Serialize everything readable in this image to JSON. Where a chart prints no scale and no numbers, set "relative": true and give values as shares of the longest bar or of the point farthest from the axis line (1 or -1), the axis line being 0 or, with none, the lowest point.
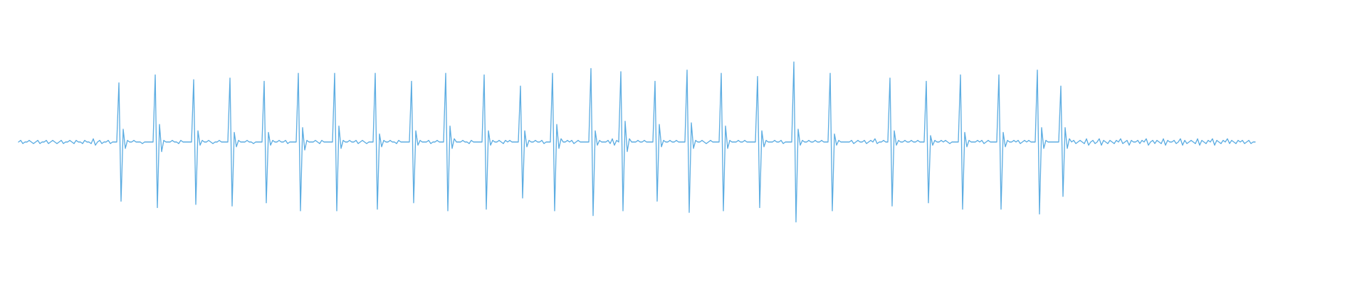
{
  "chart_data": {
    "type": "line",
    "relative": true,
    "color": "#5dade2",
    "categories": [
      null,
      null,
      null,
      null,
      null,
      null,
      null,
      null,
      null,
      null,
      null,
      null,
      null,
      null,
      null,
      null,
      null,
      null,
      null,
      null,
      null,
      null,
      null,
      null,
      null,
      null,
      null,
      null,
      null,
      null,
      null,
      null,
      null,
      null,
      null,
      null,
      null,
      null,
      null,
      null,
      null,
      null,
      null,
      null,
      null,
      null,
      null,
      null,
      null,
      null,
      null,
      null,
      null,
      null,
      null,
      null,
      null,
      null,
      null,
      null,
      null,
      null,
      null,
      null,
      null,
      null,
      null,
      null,
      null,
      null,
      null,
      null,
      null,
      null,
      null,
      null,
      null,
      null,
      null,
      null,
      null,
      null,
      null,
      null,
      null,
      null,
      null,
      null,
      null,
      null,
      null,
      null,
      null,
      null,
      null,
      null,
      null,
      null,
      null,
      null,
      null,
      null,
      null,
      null,
      null,
      null,
      null,
      null,
      null,
      null,
      null,
      null,
      null,
      null,
      null,
      null,
      null,
      null,
      null,
      null,
      null,
      null,
      null,
      null,
      null,
      null,
      null,
      null,
      null,
      null,
      null,
      null,
      null,
      null,
      null,
      null,
      null,
      null,
      null,
      null,
      null,
      null,
      null,
      null,
      null,
      null,
      null,
      null,
      null,
      null,
      null,
      null,
      null,
      null,
      null,
      null,
      null,
      null,
      null,
      null,
      null,
      null,
      null,
      null,
      null,
      null,
      null,
      null,
      null,
      null,
      null,
      null,
      null,
      null,
      null,
      null,
      null,
      null,
      null,
      null,
      null,
      null,
      null,
      null,
      null,
      null,
      null,
      null,
      null,
      null,
      null,
      null,
      null,
      null,
      null,
      null,
      null,
      null,
      null,
      null,
      null,
      null,
      null,
      null,
      null,
      null,
      null,
      null,
      null,
      null,
      null,
      null,
      null,
      null,
      null,
      null,
      null,
      null,
      null,
      null,
      null,
      null,
      null,
      null,
      null,
      null,
      null,
      null,
      null,
      null,
      null,
      null,
      null,
      null,
      null,
      null,
      null,
      null,
      null,
      null,
      null,
      null,
      null,
      null,
      null,
      null,
      null,
      null,
      null,
      null,
      null,
      null,
      null,
      null,
      null,
      null,
      null,
      null,
      null,
      null,
      null,
      null,
      null,
      null,
      null,
      null,
      null,
      null,
      null,
      null,
      null,
      null,
      null,
      null,
      null,
      null,
      null,
      null,
      null,
      null,
      null,
      null,
      null,
      null,
      null,
      null,
      null,
      null,
      null,
      null,
      null,
      null,
      null,
      null,
      null,
      null,
      null,
      null,
      null,
      null,
      null,
      null,
      null,
      null,
      null,
      null,
      null,
      null,
      null,
      null,
      null,
      null,
      null,
      null,
      null,
      null,
      null,
      null,
      null,
      null,
      null,
      null,
      null,
      null,
      null,
      null,
      null,
      null,
      null,
      null,
      null,
      null,
      null,
      null,
      null,
      null,
      null,
      null,
      null,
      null,
      null,
      null,
      null,
      null,
      null,
      null,
      null,
      null,
      null,
      null,
      null,
      null,
      null,
      null,
      null,
      null,
      null,
      null,
      null,
      null,
      null,
      null,
      null,
      null,
      null,
      null,
      null,
      null,
      null,
      null,
      null,
      null,
      null,
      null,
      null,
      null,
      null,
      null,
      null,
      null,
      null,
      null,
      null,
      null,
      null,
      null,
      null,
      null,
      null,
      null,
      null,
      null,
      null,
      null,
      null,
      null,
      null,
      null,
      null,
      null,
      null,
      null,
      null,
      null,
      null,
      null,
      null,
      null,
      null,
      null,
      null,
      null,
      null,
      null,
      null,
      null,
      null,
      null,
      null,
      null,
      null,
      null,
      null,
      null,
      null,
      null,
      null,
      null,
      null,
      null,
      null,
      null,
      null,
      null,
      null,
      null,
      null,
      null,
      null,
      null,
      null,
      null,
      null,
      null,
      null,
      null,
      null,
      null,
      null,
      null,
      null,
      null,
      null,
      null,
      null,
      null,
      null,
      null,
      null,
      null,
      null,
      null,
      null,
      null,
      null,
      null,
      null,
      null,
      null,
      null,
      null,
      null,
      null,
      null,
      null,
      null,
      null,
      null,
      null,
      null,
      null,
      null,
      null,
      null,
      null,
      null,
      null,
      null,
      null,
      null,
      null,
      null,
      null,
      null,
      null,
      null,
      null,
      null,
      null,
      null,
      null,
      null,
      null,
      null,
      null,
      null,
      null,
      null,
      null,
      null,
      null,
      null,
      null,
      null,
      null,
      null,
      null,
      null,
      null,
      null,
      null,
      null,
      null,
      null,
      null,
      null,
      null,
      null,
      null,
      null,
      null,
      null,
      null,
      null,
      null,
      null,
      null,
      null,
      null,
      null,
      null,
      null,
      null,
      null,
      null,
      null,
      null,
      null,
      null,
      null,
      null,
      null,
      null,
      null,
      null,
      null,
      null,
      null,
      null,
      null,
      null,
      null,
      null,
      null,
      null,
      null,
      null,
      null,
      null,
      null,
      null,
      null,
      null,
      null,
      null,
      null,
      null,
      null,
      null,
      null
    ],
    "values": [
      0.5,
      0.51,
      0.49,
      0.5,
      0.5,
      0.51,
      0.5,
      0.49,
      0.5,
      0.51,
      0.49,
      0.5,
      0.5,
      0.51,
      0.49,
      0.5,
      0.51,
      0.5,
      0.49,
      0.5,
      0.51,
      0.49,
      0.5,
      0.5,
      0.51,
      0.5,
      0.49,
      0.51,
      0.5,
      0.5,
      0.49,
      0.51,
      0.5,
      0.5,
      0.49,
      0.52,
      0.48,
      0.5,
      0.51,
      0.49,
      0.5,
      0.5,
      0.51,
      0.49,
      0.5,
      0.5,
      0.5,
      0.87,
      0.13,
      0.58,
      0.46,
      0.51,
      0.5,
      0.5,
      0.51,
      0.5,
      0.5,
      0.5,
      0.49,
      0.5,
      0.5,
      0.5,
      0.5,
      0.5,
      0.92,
      0.09,
      0.61,
      0.44,
      0.51,
      0.5,
      0.5,
      0.5,
      0.51,
      0.5,
      0.5,
      0.49,
      0.51,
      0.5,
      0.5,
      0.5,
      0.5,
      0.5,
      0.89,
      0.11,
      0.57,
      0.48,
      0.51,
      0.5,
      0.5,
      0.51,
      0.5,
      0.49,
      0.5,
      0.5,
      0.51,
      0.5,
      0.5,
      0.5,
      0.5,
      0.9,
      0.1,
      0.56,
      0.47,
      0.51,
      0.5,
      0.5,
      0.5,
      0.51,
      0.5,
      0.5,
      0.49,
      0.5,
      0.5,
      0.5,
      0.5,
      0.88,
      0.12,
      0.56,
      0.48,
      0.51,
      0.5,
      0.5,
      0.51,
      0.5,
      0.5,
      0.51,
      0.49,
      0.5,
      0.5,
      0.5,
      0.5,
      0.93,
      0.07,
      0.59,
      0.45,
      0.51,
      0.5,
      0.5,
      0.5,
      0.51,
      0.5,
      0.49,
      0.51,
      0.5,
      0.5,
      0.5,
      0.5,
      0.5,
      0.93,
      0.07,
      0.6,
      0.46,
      0.51,
      0.5,
      0.5,
      0.51,
      0.5,
      0.5,
      0.51,
      0.49,
      0.5,
      0.51,
      0.5,
      0.49,
      0.5,
      0.5,
      0.5,
      0.93,
      0.08,
      0.55,
      0.47,
      0.51,
      0.5,
      0.5,
      0.51,
      0.5,
      0.5,
      0.49,
      0.51,
      0.5,
      0.5,
      0.5,
      0.5,
      0.5,
      0.88,
      0.12,
      0.57,
      0.48,
      0.51,
      0.5,
      0.5,
      0.5,
      0.51,
      0.49,
      0.5,
      0.5,
      0.51,
      0.5,
      0.5,
      0.5,
      0.93,
      0.07,
      0.6,
      0.46,
      0.52,
      0.5,
      0.5,
      0.5,
      0.51,
      0.5,
      0.5,
      0.49,
      0.51,
      0.5,
      0.5,
      0.5,
      0.5,
      0.5,
      0.92,
      0.08,
      0.57,
      0.48,
      0.51,
      0.5,
      0.5,
      0.51,
      0.5,
      0.49,
      0.51,
      0.5,
      0.51,
      0.5,
      0.5,
      0.5,
      0.5,
      0.85,
      0.15,
      0.57,
      0.47,
      0.51,
      0.5,
      0.5,
      0.51,
      0.5,
      0.5,
      0.51,
      0.49,
      0.5,
      0.5,
      0.5,
      0.93,
      0.07,
      0.61,
      0.46,
      0.52,
      0.5,
      0.5,
      0.51,
      0.5,
      0.51,
      0.49,
      0.5,
      0.51,
      0.5,
      0.5,
      0.5,
      0.5,
      0.5,
      0.96,
      0.04,
      0.57,
      0.48,
      0.51,
      0.5,
      0.5,
      0.5,
      0.51,
      0.49,
      0.52,
      0.48,
      0.51,
      0.5,
      0.94,
      0.07,
      0.63,
      0.44,
      0.52,
      0.5,
      0.5,
      0.5,
      0.51,
      0.5,
      0.5,
      0.51,
      0.5,
      0.5,
      0.5,
      0.5,
      0.88,
      0.13,
      0.61,
      0.47,
      0.51,
      0.5,
      0.5,
      0.51,
      0.5,
      0.5,
      0.51,
      0.5,
      0.5,
      0.5,
      0.5,
      0.95,
      0.06,
      0.62,
      0.46,
      0.51,
      0.5,
      0.5,
      0.51,
      0.5,
      0.49,
      0.5,
      0.51,
      0.5,
      0.5,
      0.5,
      0.5,
      0.93,
      0.07,
      0.6,
      0.46,
      0.51,
      0.5,
      0.5,
      0.5,
      0.51,
      0.5,
      0.5,
      0.51,
      0.5,
      0.5,
      0.5,
      0.5,
      0.5,
      0.91,
      0.09,
      0.57,
      0.47,
      0.51,
      0.5,
      0.5,
      0.5,
      0.51,
      0.5,
      0.5,
      0.51,
      0.49,
      0.5,
      0.5,
      0.5,
      0.5,
      1,
      0,
      0.58,
      0.48,
      0.51,
      0.5,
      0.5,
      0.51,
      0.5,
      0.5,
      0.51,
      0.5,
      0.5,
      0.51,
      0.5,
      0.5,
      0.5,
      0.93,
      0.07,
      0.55,
      0.48,
      0.51,
      0.5,
      0.5,
      0.5,
      0.5,
      0.5,
      0.51,
      0.49,
      0.5,
      0.51,
      0.5,
      0.5,
      0.51,
      0.49,
      0.5,
      0.51,
      0.5,
      0.52,
      0.49,
      0.5,
      0.5,
      0.51,
      0.5,
      0.5,
      0.9,
      0.1,
      0.57,
      0.48,
      0.51,
      0.5,
      0.5,
      0.51,
      0.5,
      0.5,
      0.51,
      0.5,
      0.5,
      0.51,
      0.5,
      0.5,
      0.5,
      0.88,
      0.12,
      0.54,
      0.48,
      0.51,
      0.5,
      0.5,
      0.51,
      0.5,
      0.51,
      0.5,
      0.49,
      0.5,
      0.5,
      0.5,
      0.5,
      0.92,
      0.08,
      0.56,
      0.47,
      0.51,
      0.5,
      0.5,
      0.5,
      0.51,
      0.5,
      0.51,
      0.49,
      0.5,
      0.51,
      0.5,
      0.5,
      0.5,
      0.5,
      0.92,
      0.08,
      0.56,
      0.47,
      0.51,
      0.5,
      0.5,
      0.51,
      0.5,
      0.51,
      0.49,
      0.5,
      0.51,
      0.5,
      0.51,
      0.5,
      0.5,
      0.5,
      0.95,
      0.05,
      0.59,
      0.46,
      0.51,
      0.5,
      0.5,
      0.5,
      0.5,
      0.5,
      0.5,
      0.85,
      0.16,
      0.59,
      0.46,
      0.52,
      0.5,
      0.51,
      0.49,
      0.5,
      0.51,
      0.5,
      0.49,
      0.52,
      0.48,
      0.5,
      0.51,
      0.49,
      0.5,
      0.52,
      0.48,
      0.51,
      0.5,
      0.49,
      0.51,
      0.5,
      0.49,
      0.51,
      0.5,
      0.52,
      0.49,
      0.5,
      0.51,
      0.48,
      0.51,
      0.5,
      0.5,
      0.51,
      0.49,
      0.51,
      0.5,
      0.52,
      0.48,
      0.5,
      0.51,
      0.49,
      0.51,
      0.5,
      0.49,
      0.52,
      0.48,
      0.51,
      0.5,
      0.5,
      0.51,
      0.49,
      0.5,
      0.52,
      0.48,
      0.51,
      0.49,
      0.5,
      0.51,
      0.5,
      0.49,
      0.52,
      0.48,
      0.51,
      0.5,
      0.49,
      0.51,
      0.5,
      0.52,
      0.48,
      0.51,
      0.5,
      0.49,
      0.51,
      0.5,
      0.52,
      0.49,
      0.51,
      0.5,
      0.49,
      0.51,
      0.5,
      0.51,
      0.49,
      0.5,
      0.51,
      0.49,
      0.5,
      0.5
    ]
  }
}
